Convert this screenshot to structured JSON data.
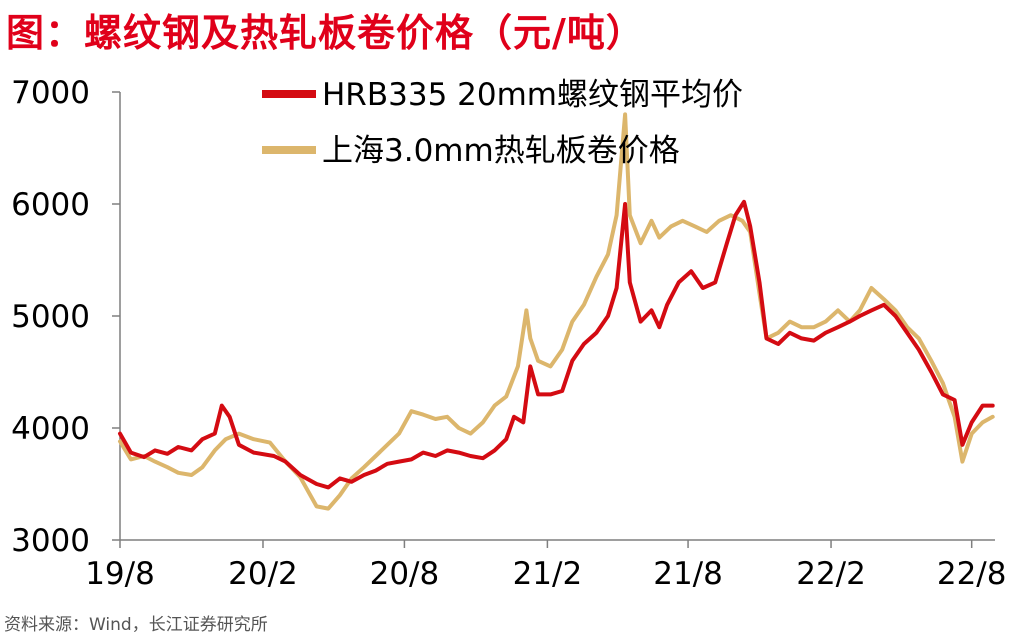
{
  "title": "图：螺纹钢及热轧板卷价格（元/吨）",
  "source": "资料来源：Wind，长江证券研究所",
  "colors": {
    "series1": "#d40b12",
    "series2": "#dcb66c",
    "title": "#e0001a",
    "axis": "#7f7f7f"
  },
  "chart_data": {
    "type": "line",
    "title": "图：螺纹钢及热轧板卷价格（元/吨）",
    "xlabel": "",
    "ylabel": "",
    "ylim": [
      3000,
      7000
    ],
    "yticks": [
      3000,
      4000,
      5000,
      6000,
      7000
    ],
    "xlim": [
      "2019-08-01",
      "2022-08-31"
    ],
    "xticks": [
      "2019-08-01",
      "2020-02-01",
      "2020-08-01",
      "2021-02-01",
      "2021-08-01",
      "2022-02-01",
      "2022-08-01"
    ],
    "xtick_labels": [
      "19/8",
      "20/2",
      "20/8",
      "21/2",
      "21/8",
      "22/2",
      "22/8"
    ],
    "legend_position": "top-center",
    "grid": false,
    "series": [
      {
        "name": "HRB335 20mm螺纹钢平均价",
        "color": "#d40b12",
        "points": [
          [
            "2019-08-01",
            3950
          ],
          [
            "2019-08-15",
            3780
          ],
          [
            "2019-09-01",
            3740
          ],
          [
            "2019-09-15",
            3800
          ],
          [
            "2019-10-01",
            3770
          ],
          [
            "2019-10-15",
            3830
          ],
          [
            "2019-11-01",
            3800
          ],
          [
            "2019-11-15",
            3900
          ],
          [
            "2019-12-01",
            3950
          ],
          [
            "2019-12-10",
            4200
          ],
          [
            "2019-12-20",
            4100
          ],
          [
            "2020-01-01",
            3850
          ],
          [
            "2020-01-20",
            3780
          ],
          [
            "2020-02-15",
            3750
          ],
          [
            "2020-03-01",
            3700
          ],
          [
            "2020-03-20",
            3580
          ],
          [
            "2020-04-10",
            3500
          ],
          [
            "2020-04-25",
            3470
          ],
          [
            "2020-05-10",
            3550
          ],
          [
            "2020-05-25",
            3520
          ],
          [
            "2020-06-10",
            3580
          ],
          [
            "2020-06-25",
            3620
          ],
          [
            "2020-07-10",
            3680
          ],
          [
            "2020-07-25",
            3700
          ],
          [
            "2020-08-10",
            3720
          ],
          [
            "2020-08-25",
            3780
          ],
          [
            "2020-09-10",
            3750
          ],
          [
            "2020-09-25",
            3800
          ],
          [
            "2020-10-10",
            3780
          ],
          [
            "2020-10-25",
            3750
          ],
          [
            "2020-11-10",
            3730
          ],
          [
            "2020-11-25",
            3800
          ],
          [
            "2020-12-10",
            3900
          ],
          [
            "2020-12-20",
            4100
          ],
          [
            "2021-01-01",
            4050
          ],
          [
            "2021-01-10",
            4550
          ],
          [
            "2021-01-20",
            4300
          ],
          [
            "2021-02-05",
            4300
          ],
          [
            "2021-02-20",
            4330
          ],
          [
            "2021-03-05",
            4600
          ],
          [
            "2021-03-20",
            4750
          ],
          [
            "2021-04-05",
            4850
          ],
          [
            "2021-04-20",
            5000
          ],
          [
            "2021-05-01",
            5250
          ],
          [
            "2021-05-12",
            6000
          ],
          [
            "2021-05-18",
            5300
          ],
          [
            "2021-06-01",
            4950
          ],
          [
            "2021-06-15",
            5050
          ],
          [
            "2021-06-25",
            4900
          ],
          [
            "2021-07-05",
            5100
          ],
          [
            "2021-07-20",
            5300
          ],
          [
            "2021-08-05",
            5400
          ],
          [
            "2021-08-20",
            5250
          ],
          [
            "2021-09-05",
            5300
          ],
          [
            "2021-09-20",
            5650
          ],
          [
            "2021-10-01",
            5900
          ],
          [
            "2021-10-12",
            6020
          ],
          [
            "2021-10-20",
            5800
          ],
          [
            "2021-11-01",
            5300
          ],
          [
            "2021-11-10",
            4800
          ],
          [
            "2021-11-25",
            4750
          ],
          [
            "2021-12-10",
            4850
          ],
          [
            "2021-12-25",
            4800
          ],
          [
            "2022-01-10",
            4780
          ],
          [
            "2022-01-25",
            4850
          ],
          [
            "2022-02-10",
            4900
          ],
          [
            "2022-02-25",
            4950
          ],
          [
            "2022-03-10",
            5000
          ],
          [
            "2022-03-25",
            5050
          ],
          [
            "2022-04-10",
            5100
          ],
          [
            "2022-04-25",
            5000
          ],
          [
            "2022-05-10",
            4850
          ],
          [
            "2022-05-25",
            4700
          ],
          [
            "2022-06-10",
            4500
          ],
          [
            "2022-06-25",
            4300
          ],
          [
            "2022-07-10",
            4250
          ],
          [
            "2022-07-20",
            3850
          ],
          [
            "2022-08-01",
            4050
          ],
          [
            "2022-08-15",
            4200
          ],
          [
            "2022-08-28",
            4200
          ]
        ]
      },
      {
        "name": "上海3.0mm热轧板卷价格",
        "color": "#dcb66c",
        "points": [
          [
            "2019-08-01",
            3880
          ],
          [
            "2019-08-15",
            3720
          ],
          [
            "2019-09-01",
            3750
          ],
          [
            "2019-09-15",
            3700
          ],
          [
            "2019-10-01",
            3650
          ],
          [
            "2019-10-15",
            3600
          ],
          [
            "2019-11-01",
            3580
          ],
          [
            "2019-11-15",
            3650
          ],
          [
            "2019-12-01",
            3800
          ],
          [
            "2019-12-15",
            3900
          ],
          [
            "2020-01-01",
            3950
          ],
          [
            "2020-01-20",
            3900
          ],
          [
            "2020-02-10",
            3870
          ],
          [
            "2020-03-01",
            3700
          ],
          [
            "2020-03-20",
            3560
          ],
          [
            "2020-04-10",
            3300
          ],
          [
            "2020-04-25",
            3280
          ],
          [
            "2020-05-10",
            3400
          ],
          [
            "2020-05-25",
            3550
          ],
          [
            "2020-06-10",
            3650
          ],
          [
            "2020-06-25",
            3750
          ],
          [
            "2020-07-10",
            3850
          ],
          [
            "2020-07-25",
            3950
          ],
          [
            "2020-08-10",
            4150
          ],
          [
            "2020-08-25",
            4120
          ],
          [
            "2020-09-10",
            4080
          ],
          [
            "2020-09-25",
            4100
          ],
          [
            "2020-10-10",
            4000
          ],
          [
            "2020-10-25",
            3950
          ],
          [
            "2020-11-10",
            4050
          ],
          [
            "2020-11-25",
            4200
          ],
          [
            "2020-12-10",
            4280
          ],
          [
            "2020-12-25",
            4550
          ],
          [
            "2021-01-05",
            5050
          ],
          [
            "2021-01-10",
            4800
          ],
          [
            "2021-01-20",
            4600
          ],
          [
            "2021-02-05",
            4550
          ],
          [
            "2021-02-20",
            4700
          ],
          [
            "2021-03-05",
            4950
          ],
          [
            "2021-03-20",
            5100
          ],
          [
            "2021-04-05",
            5350
          ],
          [
            "2021-04-20",
            5550
          ],
          [
            "2021-05-01",
            5900
          ],
          [
            "2021-05-12",
            6800
          ],
          [
            "2021-05-18",
            5900
          ],
          [
            "2021-06-01",
            5650
          ],
          [
            "2021-06-15",
            5850
          ],
          [
            "2021-06-25",
            5700
          ],
          [
            "2021-07-10",
            5800
          ],
          [
            "2021-07-25",
            5850
          ],
          [
            "2021-08-10",
            5800
          ],
          [
            "2021-08-25",
            5750
          ],
          [
            "2021-09-10",
            5850
          ],
          [
            "2021-09-25",
            5900
          ],
          [
            "2021-10-10",
            5850
          ],
          [
            "2021-10-20",
            5750
          ],
          [
            "2021-11-01",
            5200
          ],
          [
            "2021-11-10",
            4800
          ],
          [
            "2021-11-25",
            4850
          ],
          [
            "2021-12-10",
            4950
          ],
          [
            "2021-12-25",
            4900
          ],
          [
            "2022-01-10",
            4900
          ],
          [
            "2022-01-25",
            4950
          ],
          [
            "2022-02-10",
            5050
          ],
          [
            "2022-02-25",
            4950
          ],
          [
            "2022-03-10",
            5050
          ],
          [
            "2022-03-25",
            5250
          ],
          [
            "2022-04-10",
            5150
          ],
          [
            "2022-04-25",
            5050
          ],
          [
            "2022-05-10",
            4900
          ],
          [
            "2022-05-25",
            4800
          ],
          [
            "2022-06-10",
            4600
          ],
          [
            "2022-06-25",
            4400
          ],
          [
            "2022-07-10",
            4100
          ],
          [
            "2022-07-20",
            3700
          ],
          [
            "2022-08-01",
            3950
          ],
          [
            "2022-08-15",
            4050
          ],
          [
            "2022-08-28",
            4100
          ]
        ]
      }
    ]
  }
}
